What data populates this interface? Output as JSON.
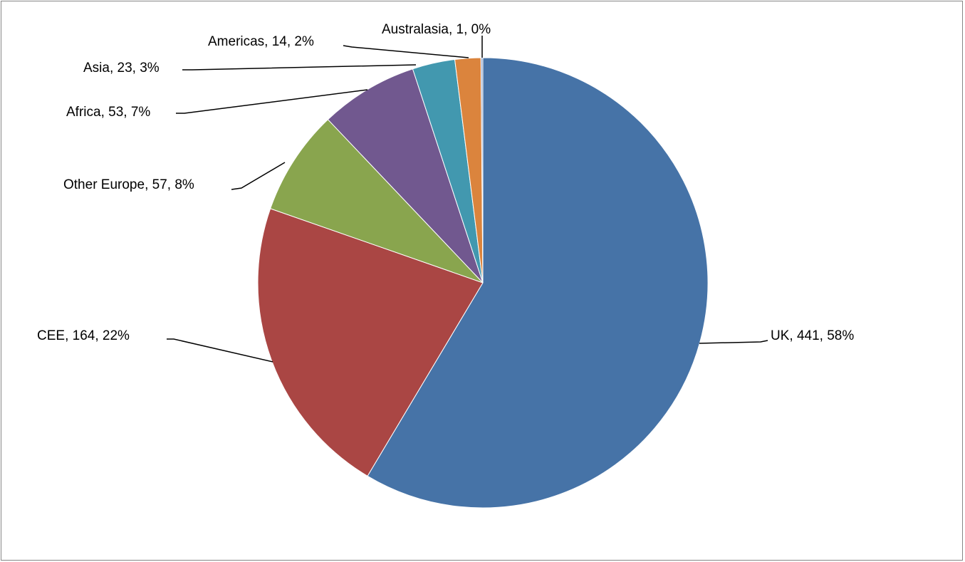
{
  "chart_data": {
    "type": "pie",
    "title": "",
    "slices": [
      {
        "label": "UK, 441, 58%",
        "category": "UK",
        "value": 441,
        "percent": 58,
        "color": "#4673a7"
      },
      {
        "label": "CEE, 164, 22%",
        "category": "CEE",
        "value": 164,
        "percent": 22,
        "color": "#aa4644"
      },
      {
        "label": "Other Europe, 57, 8%",
        "category": "Other Europe",
        "value": 57,
        "percent": 8,
        "color": "#89a54e"
      },
      {
        "label": "Africa, 53, 7%",
        "category": "Africa",
        "value": 53,
        "percent": 7,
        "color": "#71588f"
      },
      {
        "label": "Asia, 23, 3%",
        "category": "Asia",
        "value": 23,
        "percent": 3,
        "color": "#4298af"
      },
      {
        "label": "Americas, 14, 2%",
        "category": "Americas",
        "value": 14,
        "percent": 2,
        "color": "#db843d"
      },
      {
        "label": "Australasia, 1, 0%",
        "category": "Australasia",
        "value": 1,
        "percent": 0,
        "color": "#93a9cf"
      }
    ],
    "start_angle": "12 o'clock",
    "direction": "clockwise",
    "legend": "none",
    "data_labels": "outside with leader lines"
  }
}
